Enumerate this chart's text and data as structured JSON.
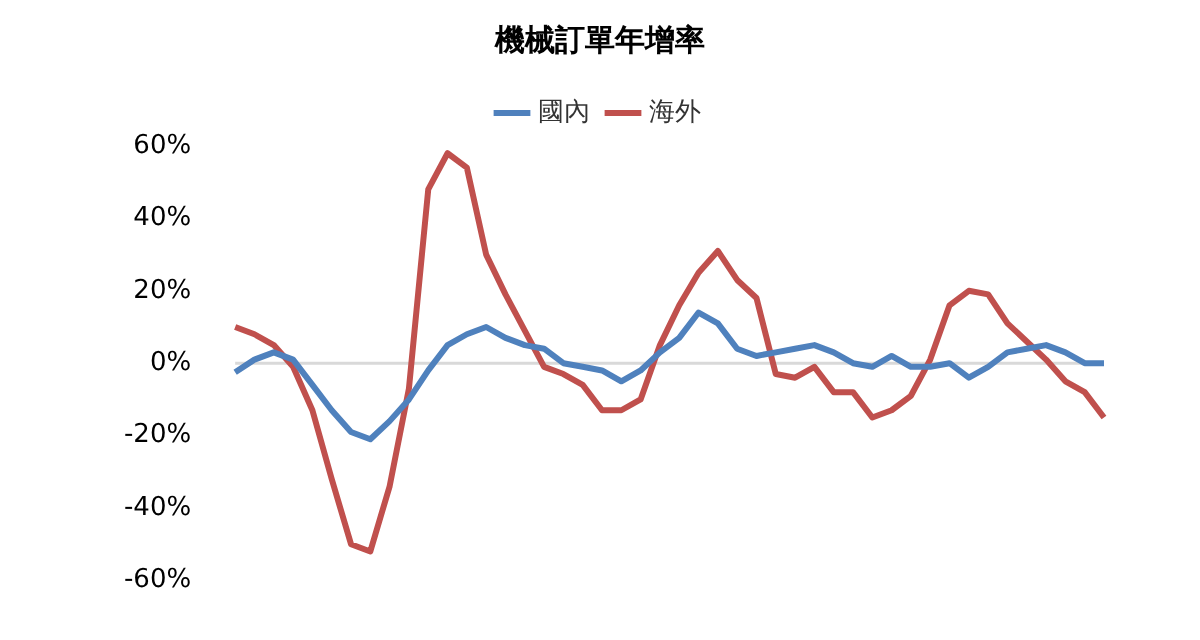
{
  "chart_data": {
    "type": "line",
    "title": "機械訂單年增率",
    "categories": [
      null,
      null,
      null,
      null,
      null,
      null,
      null,
      null,
      null,
      null,
      null,
      null,
      null,
      null,
      null,
      null,
      null,
      null,
      null,
      null,
      null,
      null,
      null,
      null,
      null,
      null,
      null,
      null,
      null,
      null,
      null,
      null,
      null,
      null,
      null,
      null,
      null,
      null,
      null,
      null,
      null,
      null,
      null,
      null,
      null,
      null
    ],
    "series": [
      {
        "name": "國內",
        "color": "#4f81bd",
        "values": [
          -2.5,
          1,
          3,
          1,
          -6,
          -13,
          -19,
          -21,
          -16,
          -10,
          -2,
          5,
          8,
          10,
          7,
          5,
          4,
          0,
          -1,
          -2,
          -5,
          -2,
          3,
          7,
          14,
          11,
          4,
          2,
          3,
          4,
          5,
          3,
          0,
          -1,
          2,
          -1,
          -1,
          0,
          -4,
          -1,
          3,
          4,
          5,
          3,
          0,
          0
        ]
      },
      {
        "name": "海外",
        "color": "#c0504d",
        "values": [
          10,
          8,
          5,
          -1,
          -13,
          -32,
          -50,
          -52,
          -34,
          -7,
          48,
          58,
          54,
          30,
          19,
          9,
          -1,
          -3,
          -6,
          -13,
          -13,
          -10,
          5,
          16,
          25,
          31,
          23,
          18,
          -3,
          -4,
          -1,
          -8,
          -8,
          -15,
          -13,
          -9,
          1,
          16,
          20,
          19,
          11,
          6,
          1,
          -5,
          -8,
          -15
        ]
      }
    ],
    "ylim": [
      -60,
      60
    ],
    "yticks": [
      {
        "value": -60,
        "label": "-60%"
      },
      {
        "value": -40,
        "label": "-40%"
      },
      {
        "value": -20,
        "label": "-20%"
      },
      {
        "value": 0,
        "label": "0%"
      },
      {
        "value": 20,
        "label": "20%"
      },
      {
        "value": 40,
        "label": "40%"
      },
      {
        "value": 60,
        "label": "60%"
      }
    ],
    "ref_lines": [
      {
        "axis": "y",
        "value": 0,
        "color": "#d9d9d9"
      }
    ],
    "legend": "top",
    "grid": false,
    "tick_labels": "y",
    "marker": "none",
    "line_style": "solid"
  }
}
